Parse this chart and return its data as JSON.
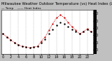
{
  "title": "Milwaukee Weather Outdoor Temperature (vs) Heat Index (Last 24 Hours)",
  "bg_color": "#c0c0c0",
  "plot_bg": "#ffffff",
  "x_hours": [
    0,
    1,
    2,
    3,
    4,
    5,
    6,
    7,
    8,
    9,
    10,
    11,
    12,
    13,
    14,
    15,
    16,
    17,
    18,
    19,
    20,
    21,
    22,
    23
  ],
  "temp": [
    62,
    58,
    54,
    50,
    47,
    45,
    44,
    43,
    44,
    45,
    50,
    55,
    62,
    68,
    74,
    78,
    76,
    72,
    68,
    65,
    62,
    65,
    68,
    65
  ],
  "heat_index": [
    62,
    58,
    54,
    50,
    47,
    45,
    44,
    43,
    44,
    45,
    52,
    58,
    67,
    76,
    84,
    88,
    84,
    78,
    72,
    67,
    62,
    65,
    69,
    65
  ],
  "ylim": [
    35,
    95
  ],
  "ytick_vals": [
    40,
    50,
    60,
    70,
    80,
    90
  ],
  "ytick_labels": [
    "40",
    "50",
    "60",
    "70",
    "80",
    "90"
  ],
  "grid_positions": [
    2,
    4,
    6,
    8,
    10,
    12,
    14,
    16,
    18,
    20,
    22
  ],
  "grid_color": "#999999",
  "temp_color": "#000000",
  "heat_color": "#cc0000",
  "right_bar_color": "#000000",
  "tick_label_size": 3.5,
  "title_fontsize": 3.8,
  "legend_fontsize": 3.2
}
